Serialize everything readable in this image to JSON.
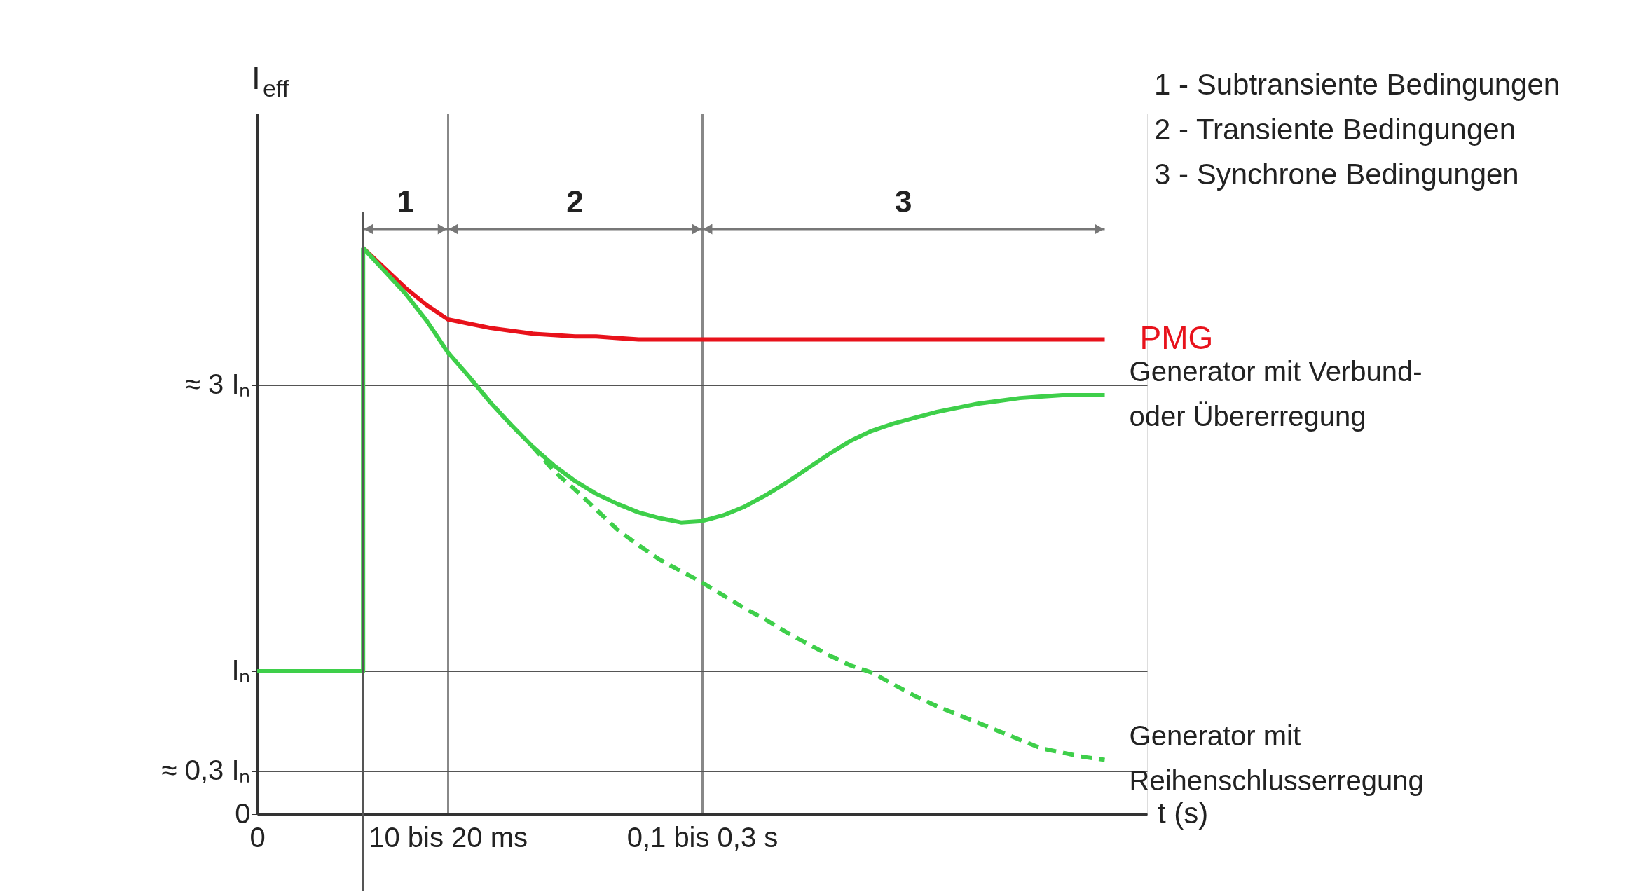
{
  "chart_data": {
    "type": "line",
    "ylabel": "I$_{eff}$",
    "xlabel": "t (s)",
    "categories": [
      "0",
      null,
      null,
      null,
      null,
      null,
      null,
      null,
      null,
      "10 bis 20 ms",
      null,
      null,
      null,
      null,
      null,
      null,
      null,
      null,
      null,
      null,
      null,
      "0,1 bis 0,3 s",
      null,
      null,
      null,
      null,
      null,
      null,
      null,
      null,
      null,
      null,
      null,
      null,
      null,
      null,
      null,
      null,
      null,
      null,
      null
    ],
    "ylim": [
      0,
      4.9
    ],
    "yticks": [
      0,
      {
        "value": 0.3,
        "label": "≈ 0,3 Iₙ"
      },
      {
        "value": 1,
        "label": "Iₙ"
      },
      {
        "value": 3,
        "label": "≈ 3 Iₙ"
      }
    ],
    "grid": true,
    "series": [
      {
        "type": "step",
        "color": "#3ecf4a",
        "values": [
          1,
          1,
          1,
          1,
          1,
          3.96,
          null,
          null,
          null,
          null,
          null,
          null,
          null,
          null,
          null,
          null,
          null,
          null,
          null,
          null,
          null,
          null,
          null,
          null,
          null,
          null,
          null,
          null,
          null,
          null,
          null,
          null,
          null,
          null,
          null,
          null,
          null,
          null,
          null,
          null,
          null
        ]
      },
      {
        "name": "PMG",
        "color": "#e8121b",
        "values": [
          null,
          null,
          null,
          null,
          null,
          3.96,
          3.82,
          3.68,
          3.56,
          3.46,
          3.43,
          3.4,
          3.38,
          3.36,
          3.35,
          3.34,
          3.34,
          3.33,
          3.32,
          3.32,
          3.32,
          3.32,
          3.32,
          3.32,
          3.32,
          3.32,
          3.32,
          3.32,
          3.32,
          3.32,
          3.32,
          3.32,
          3.32,
          3.32,
          3.32,
          3.32,
          3.32,
          3.32,
          3.32,
          3.32,
          3.32
        ]
      },
      {
        "name": "Generator mit Verbund- oder Übererregung",
        "color": "#3ecf4a",
        "values": [
          null,
          null,
          null,
          null,
          null,
          3.96,
          3.8,
          3.64,
          3.45,
          3.23,
          3.06,
          2.88,
          2.72,
          2.57,
          2.44,
          2.33,
          2.24,
          2.17,
          2.11,
          2.07,
          2.04,
          2.05,
          2.09,
          2.15,
          2.23,
          2.32,
          2.42,
          2.52,
          2.61,
          2.68,
          2.73,
          2.77,
          2.81,
          2.84,
          2.87,
          2.89,
          2.91,
          2.92,
          2.93,
          2.93,
          2.93
        ]
      },
      {
        "name": "Generator mit Reihenschlusserregung",
        "color": "#3ecf4a",
        "line_style": "dashed",
        "values": [
          null,
          null,
          null,
          null,
          null,
          null,
          null,
          null,
          null,
          null,
          null,
          null,
          null,
          2.57,
          2.4,
          2.27,
          2.13,
          1.99,
          1.88,
          1.78,
          1.7,
          1.62,
          1.53,
          1.44,
          1.36,
          1.27,
          1.19,
          1.11,
          1.04,
          0.99,
          0.91,
          0.83,
          0.76,
          0.7,
          0.64,
          0.58,
          0.52,
          0.46,
          0.43,
          0.4,
          0.38
        ]
      }
    ],
    "annotations": [
      "1",
      "2",
      "3",
      "1 - Subtransiente Bedingungen",
      "2 - Transiente Bedingungen",
      "3 - Synchrone Bedingungen"
    ]
  }
}
